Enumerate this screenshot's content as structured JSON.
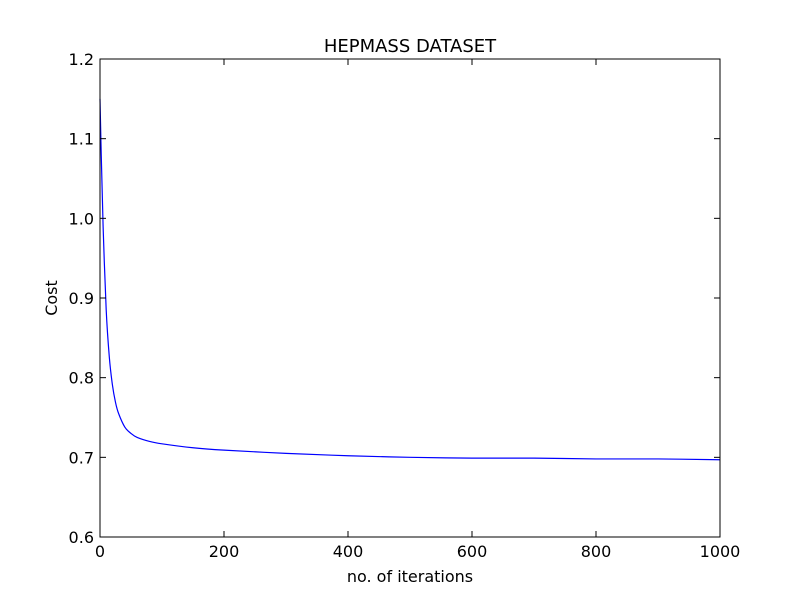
{
  "chart_data": {
    "type": "line",
    "title": "HEPMASS DATASET",
    "xlabel": "no. of iterations",
    "ylabel": "Cost",
    "xlim": [
      0,
      1000
    ],
    "ylim": [
      0.6,
      1.2
    ],
    "xticks": [
      0,
      200,
      400,
      600,
      800,
      1000
    ],
    "yticks": [
      0.6,
      0.7,
      0.8,
      0.9,
      1.0,
      1.1,
      1.2
    ],
    "xtick_labels": [
      "0",
      "200",
      "400",
      "600",
      "800",
      "1000"
    ],
    "ytick_labels": [
      "0.6",
      "0.7",
      "0.8",
      "0.9",
      "1.0",
      "1.1",
      "1.2"
    ],
    "grid": false,
    "legend": "none",
    "series": [
      {
        "color": "#0000ff",
        "x": [
          0,
          2,
          5,
          10,
          15,
          20,
          25,
          30,
          40,
          50,
          60,
          80,
          100,
          150,
          200,
          300,
          400,
          500,
          600,
          700,
          800,
          900,
          1000
        ],
        "y": [
          1.15,
          1.08,
          0.99,
          0.885,
          0.826,
          0.791,
          0.769,
          0.755,
          0.738,
          0.73,
          0.725,
          0.72,
          0.717,
          0.712,
          0.709,
          0.705,
          0.702,
          0.7,
          0.699,
          0.699,
          0.698,
          0.698,
          0.697
        ]
      }
    ]
  }
}
